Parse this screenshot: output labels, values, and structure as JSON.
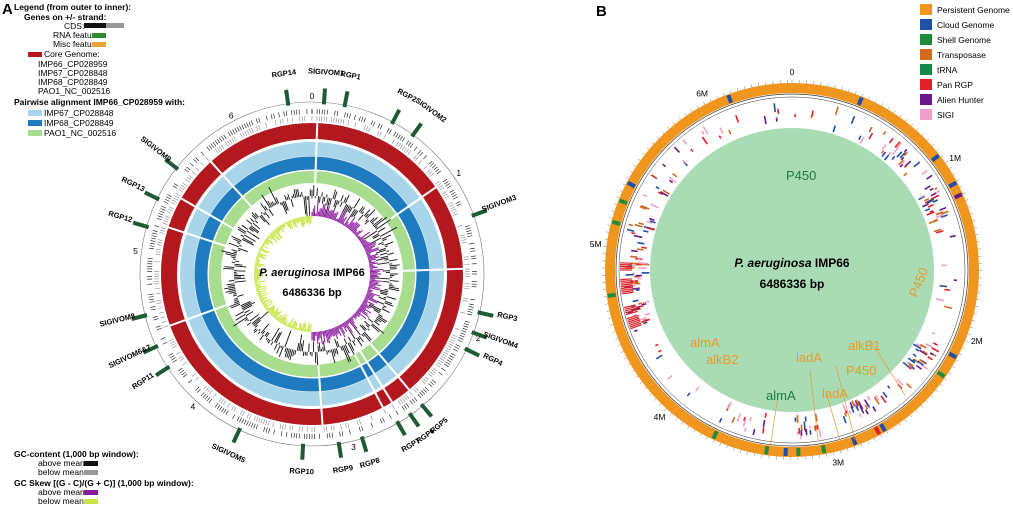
{
  "panelA": {
    "letter": "A",
    "legend": {
      "title": "Legend (from outer to inner):",
      "genes_header": "Genes on +/- strand:",
      "cds": "CDS:",
      "rna": "RNA features:",
      "misc": "Misc features:",
      "core_header": "Core Genome:",
      "core_items": [
        "IMP66_CP028959",
        "IMP67_CP028848",
        "IMP68_CP028849",
        "PAO1_NC_002516"
      ],
      "pairwise_header": "Pairwise alignment IMP66_CP028959 with:",
      "pairwise_items": [
        "IMP67_CP028848",
        "IMP68_CP028849",
        "PAO1_NC_002516"
      ],
      "gc_header": "GC-content (1,000 bp window):",
      "gc_above": "above mean:",
      "gc_below": "below mean:",
      "skew_header": "GC Skew [(G - C)/(G + C)] (1,000 bp window):",
      "skew_above": "above mean:",
      "skew_below": "below mean:"
    },
    "center_title_italic": "P. aeruginosa",
    "center_title_strain": " IMP66",
    "center_size": "6486336 bp",
    "ticks": [
      "0",
      "1",
      "2",
      "3",
      "4",
      "5",
      "6"
    ],
    "regions": [
      {
        "name": "RGP14",
        "angle": -8
      },
      {
        "name": "SIGIVOM1",
        "angle": 4
      },
      {
        "name": "RGP1",
        "angle": 11
      },
      {
        "name": "RGP2",
        "angle": 28
      },
      {
        "name": "SIGIVOM2",
        "angle": 36
      },
      {
        "name": "SIGIVOM3",
        "angle": 70
      },
      {
        "name": "RGP3",
        "angle": 103
      },
      {
        "name": "SIGIVOM4",
        "angle": 110
      },
      {
        "name": "RGP4",
        "angle": 116
      },
      {
        "name": "RGP5",
        "angle": 140
      },
      {
        "name": "RGP6",
        "angle": 145
      },
      {
        "name": "RGP7",
        "angle": 150
      },
      {
        "name": "RGP8",
        "angle": 163
      },
      {
        "name": "RGP9",
        "angle": 171
      },
      {
        "name": "RGP10",
        "angle": 183
      },
      {
        "name": "SIGIVOM5",
        "angle": 205
      },
      {
        "name": "RGP11",
        "angle": 237
      },
      {
        "name": "SIGIVOM6&7",
        "angle": 245
      },
      {
        "name": "SIGIVOM8",
        "angle": 256
      },
      {
        "name": "RGP12",
        "angle": 286
      },
      {
        "name": "RGP13",
        "angle": 296
      },
      {
        "name": "SIGIVOM9",
        "angle": 308
      }
    ],
    "colors": {
      "core": "#b3181f",
      "pair1": "#a9d5ea",
      "pair2": "#1f7bbf",
      "pair3": "#a8dc8e",
      "rna": "#2e8b2e",
      "misc": "#e8a33a",
      "skew_above": "#8b1a9e",
      "skew_below": "#c8e64a",
      "region": "#1e5a34"
    }
  },
  "panelB": {
    "letter": "B",
    "legend": [
      {
        "label": "Persistent Genome",
        "color": "#f0961e"
      },
      {
        "label": "Cloud Genome",
        "color": "#1f4fa8"
      },
      {
        "label": "Shell Genome",
        "color": "#1e8a3c"
      },
      {
        "label": "Transposase",
        "color": "#d2691e"
      },
      {
        "label": "tRNA",
        "color": "#138a4a"
      },
      {
        "label": "Pan RGP",
        "color": "#e0202a"
      },
      {
        "label": "Alien Hunter",
        "color": "#6a1a8a"
      },
      {
        "label": "SIGI",
        "color": "#f0a0c8"
      }
    ],
    "center_title_italic": "P. aeruginosa",
    "center_title_strain": " IMP66",
    "center_size": "6486336 bp",
    "ticks": [
      "0",
      "1M",
      "2M",
      "3M",
      "4M",
      "5M",
      "6M"
    ],
    "genes_orange": [
      {
        "label": "P450"
      },
      {
        "label": "almA"
      },
      {
        "label": "alkB2"
      },
      {
        "label": "ladA"
      },
      {
        "label": "alkB1"
      },
      {
        "label": "P450"
      },
      {
        "label": "ladA"
      }
    ],
    "genes_green": [
      {
        "label": "P450"
      },
      {
        "label": "almA"
      }
    ],
    "center_fill": "#a9dcb4"
  }
}
